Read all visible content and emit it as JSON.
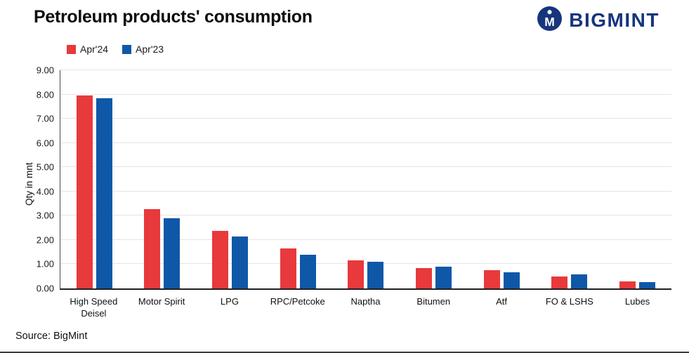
{
  "header": {
    "title": "Petroleum products' consumption",
    "logo_text": "BIGMINT"
  },
  "footer": {
    "source": "Source: BigMint"
  },
  "chart_data": {
    "type": "bar",
    "title": "Petroleum products' consumption",
    "categories": [
      "High Speed Deisel",
      "Motor Spirit",
      "LPG",
      "RPC/Petcoke",
      "Naptha",
      "Bitumen",
      "Atf",
      "FO & LSHS",
      "Lubes"
    ],
    "series": [
      {
        "name": "Apr'24",
        "color": "#e8393c",
        "values": [
          7.95,
          3.28,
          2.37,
          1.65,
          1.15,
          0.83,
          0.74,
          0.49,
          0.29
        ]
      },
      {
        "name": "Apr'23",
        "color": "#0f58a8",
        "values": [
          7.83,
          2.88,
          2.13,
          1.38,
          1.1,
          0.9,
          0.66,
          0.57,
          0.26
        ]
      }
    ],
    "xlabel": "",
    "ylabel": "Qty in mnt",
    "ylim": [
      0,
      9
    ],
    "ytick_step": 1,
    "grid": true,
    "legend_position": "top-left"
  },
  "colors": {
    "brand_navy": "#17357d",
    "series_red": "#e8393c",
    "series_blue": "#0f58a8"
  }
}
